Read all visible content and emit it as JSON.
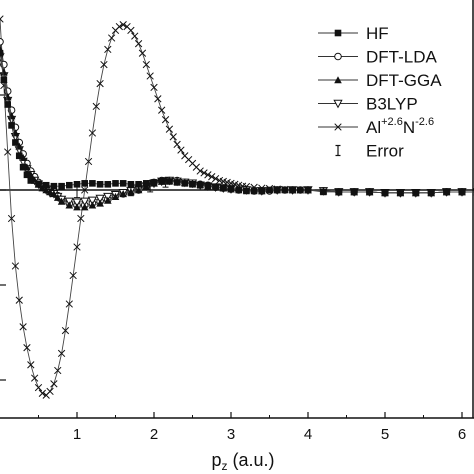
{
  "chart_data": {
    "type": "line",
    "xlabel": {
      "main": "p",
      "sub": "z",
      "rest": " (a.u.)"
    },
    "ylabel": "",
    "xlim": [
      0,
      6.2
    ],
    "ylim": [
      -1.2,
      1.0
    ],
    "x_ticks": [
      "1",
      "2",
      "3",
      "4",
      "5",
      "6"
    ],
    "x_tick_values": [
      1,
      2,
      3,
      4,
      5,
      6
    ],
    "y_tick_values": [
      -1,
      -0.5,
      0,
      0.5
    ],
    "reference_line_y": 0,
    "legend_position": "top-right",
    "legend": [
      {
        "name": "HF",
        "marker": "filled-square"
      },
      {
        "name": "DFT-LDA",
        "marker": "open-circle"
      },
      {
        "name": "DFT-GGA",
        "marker": "filled-triangle-up"
      },
      {
        "name": "B3LYP",
        "marker": "open-triangle-down"
      },
      {
        "name": "Al",
        "sup1": "+2.6",
        "mid": "N",
        "sup2": "-2.6",
        "marker": "x"
      },
      {
        "name": "Error",
        "marker": "error-bar"
      }
    ],
    "series": [
      {
        "name": "HF",
        "marker": "filled-square",
        "x": [
          0.0,
          0.05,
          0.1,
          0.15,
          0.2,
          0.25,
          0.3,
          0.35,
          0.4,
          0.5,
          0.6,
          0.7,
          0.8,
          0.9,
          1.0,
          1.1,
          1.2,
          1.3,
          1.4,
          1.5,
          1.6,
          1.7,
          1.8,
          1.9,
          2.0,
          2.1,
          2.2,
          2.3,
          2.4,
          2.5,
          2.6,
          2.7,
          2.8,
          2.9,
          3.0,
          3.1,
          3.2,
          3.3,
          3.4,
          3.5,
          3.6,
          3.7,
          3.8,
          3.9,
          4.0,
          4.2,
          4.4,
          4.6,
          4.8,
          5.0,
          5.2,
          5.4,
          5.6,
          5.8,
          6.0,
          6.2
        ],
        "y": [
          0.72,
          0.58,
          0.45,
          0.34,
          0.25,
          0.18,
          0.12,
          0.08,
          0.05,
          0.03,
          0.025,
          0.02,
          0.02,
          0.025,
          0.03,
          0.035,
          0.035,
          0.03,
          0.03,
          0.035,
          0.035,
          0.03,
          0.03,
          0.035,
          0.04,
          0.045,
          0.045,
          0.04,
          0.035,
          0.03,
          0.025,
          0.02,
          0.015,
          0.01,
          0.005,
          0.0,
          -0.005,
          -0.005,
          -0.005,
          0.0,
          0.0,
          0.0,
          0.0,
          0.0,
          0.0,
          -0.01,
          -0.01,
          -0.01,
          -0.01,
          -0.015,
          -0.015,
          -0.015,
          -0.015,
          -0.01,
          -0.01,
          -0.01
        ]
      },
      {
        "name": "DFT-LDA",
        "marker": "open-circle",
        "x": [
          0.0,
          0.05,
          0.1,
          0.15,
          0.2,
          0.25,
          0.3,
          0.35,
          0.4,
          0.45,
          0.5,
          0.55,
          0.6,
          0.65,
          0.7,
          0.75,
          0.8,
          0.9,
          1.0,
          1.1,
          1.2,
          1.3,
          1.4,
          1.5,
          1.6,
          1.7,
          1.8,
          1.9,
          2.0,
          2.1,
          2.2,
          2.3,
          2.4,
          2.5,
          2.6,
          2.7,
          2.8,
          2.9,
          3.0,
          3.1,
          3.2,
          3.3,
          3.4,
          3.5,
          3.6,
          3.7,
          3.8,
          3.9,
          4.0,
          4.2,
          4.4,
          4.6,
          4.8,
          5.0,
          5.2,
          5.4,
          5.6,
          5.8,
          6.0,
          6.2
        ],
        "y": [
          0.78,
          0.66,
          0.52,
          0.42,
          0.33,
          0.25,
          0.19,
          0.14,
          0.1,
          0.07,
          0.04,
          0.02,
          0.01,
          0.0,
          -0.01,
          -0.03,
          -0.05,
          -0.07,
          -0.08,
          -0.08,
          -0.07,
          -0.06,
          -0.05,
          -0.03,
          -0.02,
          -0.01,
          0.0,
          0.02,
          0.04,
          0.05,
          0.05,
          0.05,
          0.04,
          0.035,
          0.03,
          0.025,
          0.015,
          0.01,
          0.005,
          0.0,
          0.0,
          -0.005,
          -0.005,
          -0.005,
          0.0,
          0.0,
          0.0,
          0.0,
          0.0,
          -0.005,
          -0.01,
          -0.01,
          -0.01,
          -0.015,
          -0.015,
          -0.015,
          -0.015,
          -0.01,
          -0.01,
          -0.01
        ]
      },
      {
        "name": "DFT-GGA",
        "marker": "filled-triangle-up",
        "x": [
          0.0,
          0.05,
          0.1,
          0.15,
          0.2,
          0.25,
          0.3,
          0.35,
          0.4,
          0.45,
          0.5,
          0.55,
          0.6,
          0.65,
          0.7,
          0.75,
          0.8,
          0.9,
          1.0,
          1.1,
          1.2,
          1.3,
          1.4,
          1.5,
          1.6,
          1.7,
          1.8,
          1.9,
          2.0,
          2.1,
          2.2,
          2.3,
          2.4,
          2.5,
          2.6,
          2.7,
          2.8,
          2.9,
          3.0,
          3.2,
          3.4,
          3.6,
          3.8,
          4.0,
          4.2,
          4.4,
          4.6,
          4.8,
          5.0,
          5.2,
          5.4,
          5.6,
          5.8,
          6.0,
          6.2
        ],
        "y": [
          0.74,
          0.62,
          0.49,
          0.39,
          0.3,
          0.23,
          0.17,
          0.12,
          0.08,
          0.05,
          0.03,
          0.01,
          0.0,
          -0.01,
          -0.02,
          -0.04,
          -0.06,
          -0.08,
          -0.09,
          -0.09,
          -0.08,
          -0.07,
          -0.055,
          -0.035,
          -0.02,
          -0.01,
          0.0,
          0.02,
          0.035,
          0.045,
          0.05,
          0.045,
          0.04,
          0.035,
          0.03,
          0.02,
          0.015,
          0.01,
          0.005,
          0.0,
          -0.005,
          0.0,
          0.0,
          0.0,
          -0.005,
          -0.01,
          -0.01,
          -0.01,
          -0.015,
          -0.015,
          -0.015,
          -0.015,
          -0.01,
          -0.01,
          -0.01
        ]
      },
      {
        "name": "B3LYP",
        "marker": "open-triangle-down",
        "x": [
          0.0,
          0.05,
          0.1,
          0.15,
          0.2,
          0.25,
          0.3,
          0.35,
          0.4,
          0.45,
          0.5,
          0.55,
          0.6,
          0.65,
          0.7,
          0.75,
          0.8,
          0.9,
          1.0,
          1.1,
          1.2,
          1.3,
          1.4,
          1.5,
          1.6,
          1.7,
          1.8,
          1.9,
          2.0,
          2.1,
          2.2,
          2.3,
          2.4,
          2.5,
          2.6,
          2.7,
          2.8,
          2.9,
          3.0,
          3.2,
          3.4,
          3.6,
          3.8,
          4.0,
          4.2,
          4.4,
          4.6,
          4.8,
          5.0,
          5.2,
          5.4,
          5.6,
          5.8,
          6.0,
          6.2
        ],
        "y": [
          0.7,
          0.6,
          0.47,
          0.37,
          0.28,
          0.21,
          0.15,
          0.11,
          0.08,
          0.05,
          0.03,
          0.015,
          0.0,
          -0.015,
          -0.02,
          -0.035,
          -0.05,
          -0.06,
          -0.065,
          -0.06,
          -0.055,
          -0.045,
          -0.035,
          -0.025,
          -0.015,
          -0.005,
          0.005,
          0.02,
          0.035,
          0.045,
          0.05,
          0.045,
          0.04,
          0.035,
          0.025,
          0.02,
          0.015,
          0.01,
          0.005,
          0.0,
          -0.005,
          0.0,
          0.0,
          0.0,
          -0.005,
          -0.01,
          -0.01,
          -0.01,
          -0.015,
          -0.015,
          -0.015,
          -0.015,
          -0.01,
          -0.01,
          -0.01
        ]
      },
      {
        "name": "Al+2.6N-2.6",
        "marker": "x",
        "x": [
          0.0,
          0.05,
          0.1,
          0.15,
          0.2,
          0.25,
          0.3,
          0.35,
          0.4,
          0.45,
          0.5,
          0.55,
          0.6,
          0.65,
          0.7,
          0.75,
          0.8,
          0.85,
          0.9,
          0.95,
          1.0,
          1.05,
          1.1,
          1.15,
          1.2,
          1.25,
          1.3,
          1.35,
          1.4,
          1.45,
          1.5,
          1.55,
          1.6,
          1.65,
          1.7,
          1.75,
          1.8,
          1.85,
          1.9,
          1.95,
          2.0,
          2.05,
          2.1,
          2.15,
          2.2,
          2.25,
          2.3,
          2.35,
          2.4,
          2.45,
          2.5,
          2.55,
          2.6,
          2.65,
          2.7,
          2.75,
          2.8,
          2.85,
          2.9,
          2.95,
          3.0,
          3.05,
          3.1,
          3.15,
          3.2,
          3.3,
          3.4,
          3.5,
          3.6,
          3.7,
          3.8,
          3.9,
          4.0,
          4.2,
          4.4,
          4.6,
          4.8,
          5.0,
          5.2,
          5.4,
          5.6,
          5.8,
          6.0,
          6.2
        ],
        "y": [
          0.9,
          0.55,
          0.2,
          -0.15,
          -0.4,
          -0.58,
          -0.72,
          -0.83,
          -0.92,
          -0.99,
          -1.04,
          -1.07,
          -1.08,
          -1.06,
          -1.02,
          -0.95,
          -0.86,
          -0.74,
          -0.6,
          -0.45,
          -0.3,
          -0.15,
          0.0,
          0.15,
          0.3,
          0.44,
          0.56,
          0.66,
          0.74,
          0.8,
          0.84,
          0.86,
          0.87,
          0.86,
          0.84,
          0.81,
          0.77,
          0.72,
          0.66,
          0.6,
          0.54,
          0.48,
          0.42,
          0.37,
          0.32,
          0.28,
          0.24,
          0.21,
          0.18,
          0.16,
          0.14,
          0.12,
          0.1,
          0.09,
          0.08,
          0.07,
          0.06,
          0.05,
          0.045,
          0.04,
          0.035,
          0.03,
          0.025,
          0.02,
          0.018,
          0.014,
          0.01,
          0.008,
          0.005,
          0.003,
          0.0,
          0.0,
          0.0,
          -0.005,
          -0.01,
          -0.01,
          -0.01,
          -0.015,
          -0.015,
          -0.015,
          -0.015,
          -0.01,
          -0.01,
          -0.01
        ]
      }
    ],
    "error_bars": [
      {
        "x": 1.0,
        "y": 0.0,
        "err": 0.04
      },
      {
        "x": 1.7,
        "y": 0.0,
        "err": 0.03
      },
      {
        "x": 1.95,
        "y": 0.02,
        "err": 0.03
      },
      {
        "x": 2.15,
        "y": 0.04,
        "err": 0.025
      }
    ]
  }
}
